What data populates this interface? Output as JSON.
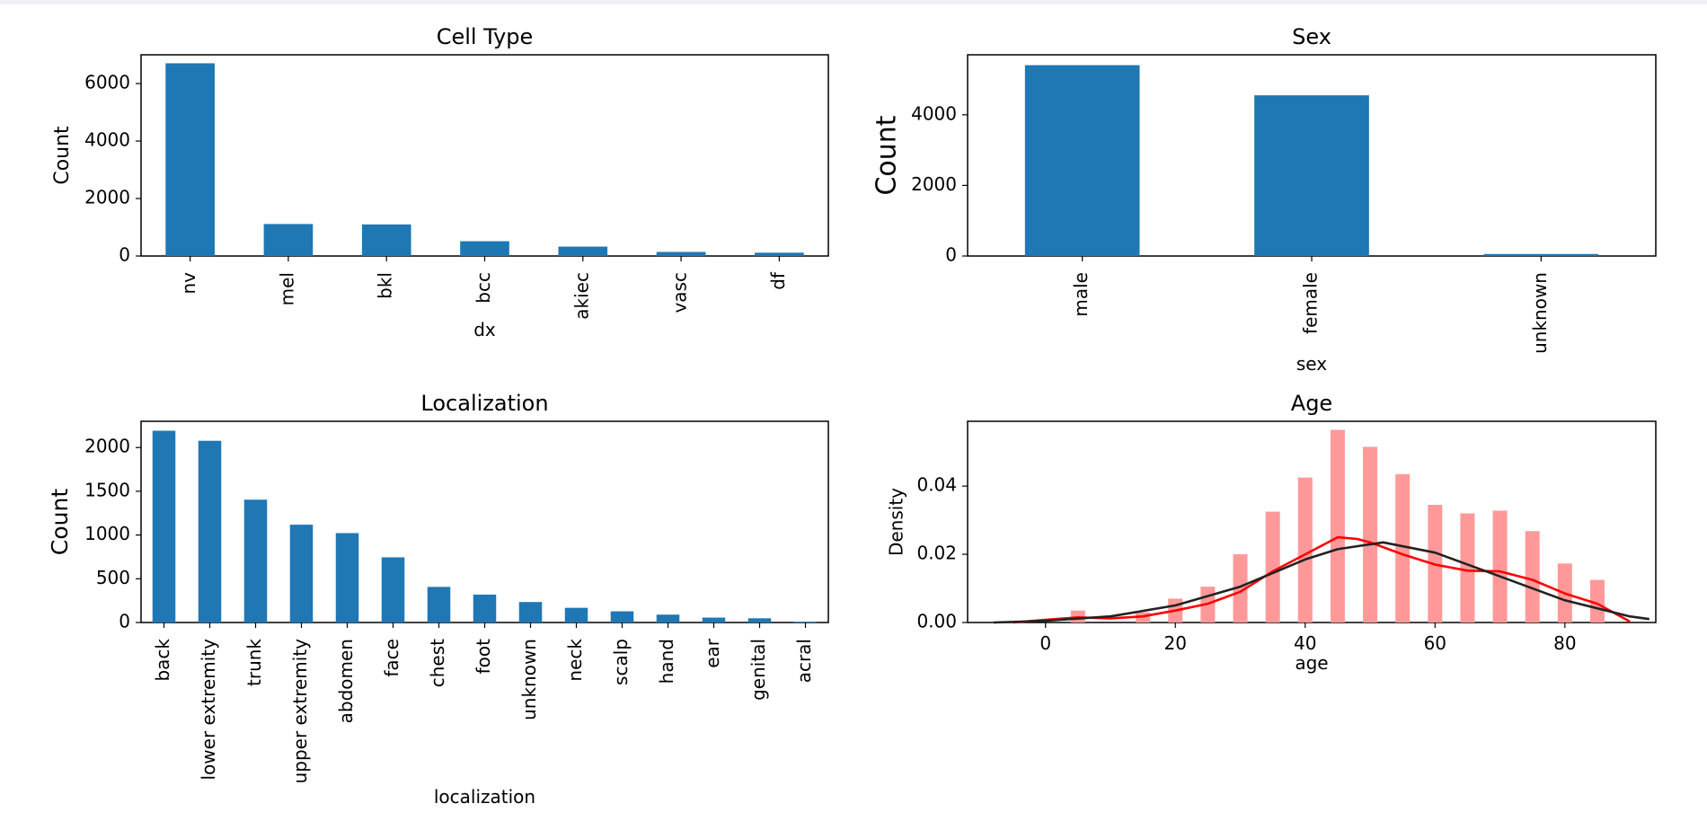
{
  "chart_data": [
    {
      "type": "bar",
      "title": "Cell Type",
      "xlabel": "dx",
      "ylabel": "Count",
      "categories": [
        "nv",
        "mel",
        "bkl",
        "bcc",
        "akiec",
        "vasc",
        "df"
      ],
      "values": [
        6705,
        1113,
        1099,
        514,
        327,
        142,
        115
      ],
      "ylim": [
        0,
        7000
      ],
      "yticks": [
        0,
        2000,
        4000,
        6000
      ],
      "color": "#1f77b4"
    },
    {
      "type": "bar",
      "title": "Sex",
      "xlabel": "sex",
      "ylabel": "Count",
      "categories": [
        "male",
        "female",
        "unknown"
      ],
      "values": [
        5406,
        4552,
        57
      ],
      "ylim": [
        0,
        5700
      ],
      "yticks": [
        0,
        2000,
        4000
      ],
      "color": "#1f77b4"
    },
    {
      "type": "bar",
      "title": "Localization",
      "xlabel": "localization",
      "ylabel": "Count",
      "categories": [
        "back",
        "lower extremity",
        "trunk",
        "upper extremity",
        "abdomen",
        "face",
        "chest",
        "foot",
        "unknown",
        "neck",
        "scalp",
        "hand",
        "ear",
        "genital",
        "acral"
      ],
      "values": [
        2192,
        2077,
        1404,
        1118,
        1022,
        745,
        407,
        319,
        234,
        168,
        128,
        90,
        56,
        48,
        7
      ],
      "ylim": [
        0,
        2300
      ],
      "yticks": [
        0,
        500,
        1000,
        1500,
        2000
      ],
      "color": "#1f77b4"
    },
    {
      "type": "histogram",
      "title": "Age",
      "xlabel": "age",
      "ylabel": "Density",
      "xlim": [
        -12,
        94
      ],
      "ylim": [
        0,
        0.059
      ],
      "xticks": [
        0,
        20,
        40,
        60,
        80
      ],
      "yticks": [
        "0.00",
        "0.02",
        "0.04"
      ],
      "bar_color": "#ff9999",
      "bars": [
        {
          "x": 5,
          "y": 0.0035
        },
        {
          "x": 15,
          "y": 0.003
        },
        {
          "x": 20,
          "y": 0.007
        },
        {
          "x": 25,
          "y": 0.0105
        },
        {
          "x": 30,
          "y": 0.02
        },
        {
          "x": 35,
          "y": 0.0325
        },
        {
          "x": 40,
          "y": 0.0425
        },
        {
          "x": 45,
          "y": 0.0565
        },
        {
          "x": 50,
          "y": 0.0515
        },
        {
          "x": 55,
          "y": 0.0435
        },
        {
          "x": 60,
          "y": 0.0345
        },
        {
          "x": 65,
          "y": 0.032
        },
        {
          "x": 70,
          "y": 0.0328
        },
        {
          "x": 75,
          "y": 0.0268
        },
        {
          "x": 80,
          "y": 0.0173
        },
        {
          "x": 85,
          "y": 0.0125
        }
      ],
      "series": [
        {
          "kind": "kde",
          "color": "#ff0000",
          "points": [
            [
              -5,
              0
            ],
            [
              0,
              0.0008
            ],
            [
              5,
              0.0015
            ],
            [
              10,
              0.0012
            ],
            [
              15,
              0.0018
            ],
            [
              20,
              0.0035
            ],
            [
              25,
              0.0055
            ],
            [
              30,
              0.009
            ],
            [
              35,
              0.015
            ],
            [
              40,
              0.02
            ],
            [
              45,
              0.025
            ],
            [
              48,
              0.0245
            ],
            [
              50,
              0.0235
            ],
            [
              55,
              0.02
            ],
            [
              60,
              0.017
            ],
            [
              65,
              0.0152
            ],
            [
              70,
              0.015
            ],
            [
              75,
              0.0125
            ],
            [
              80,
              0.0085
            ],
            [
              85,
              0.0055
            ],
            [
              90,
              0.0003
            ]
          ]
        },
        {
          "kind": "normal-fit",
          "color": "#222222",
          "points": [
            [
              -8,
              0
            ],
            [
              0,
              0.0005
            ],
            [
              10,
              0.0018
            ],
            [
              20,
              0.005
            ],
            [
              30,
              0.0105
            ],
            [
              40,
              0.0185
            ],
            [
              45,
              0.0215
            ],
            [
              52,
              0.0235
            ],
            [
              60,
              0.0205
            ],
            [
              70,
              0.0135
            ],
            [
              80,
              0.0065
            ],
            [
              90,
              0.0018
            ],
            [
              93,
              0.001
            ]
          ]
        }
      ]
    }
  ]
}
